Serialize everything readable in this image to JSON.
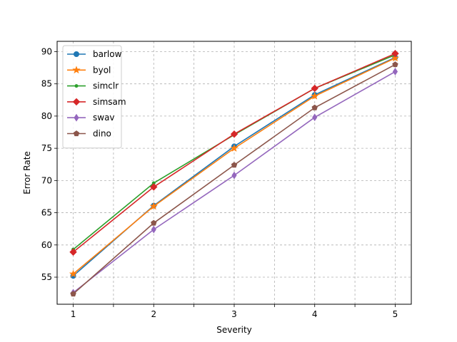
{
  "chart_data": {
    "type": "line",
    "xlabel": "Severity",
    "ylabel": "Error Rate",
    "x": [
      1,
      2,
      3,
      4,
      5
    ],
    "x_ticks": [
      1,
      2,
      3,
      4,
      5
    ],
    "x_minor_ticks": [
      1.5,
      2.5,
      3.5,
      4.5
    ],
    "xlim": [
      0.8,
      5.2
    ],
    "y_ticks": [
      55,
      60,
      65,
      70,
      75,
      80,
      85,
      90
    ],
    "ylim": [
      50.8,
      91.6
    ],
    "grid": true,
    "legend_position": "upper-left",
    "series": [
      {
        "name": "barlow",
        "color": "#1f77b4",
        "marker": "circle",
        "values": [
          55.2,
          66.1,
          75.3,
          83.3,
          89.1
        ]
      },
      {
        "name": "byol",
        "color": "#ff7f0e",
        "marker": "star",
        "values": [
          55.5,
          66.0,
          75.0,
          83.1,
          89.0
        ]
      },
      {
        "name": "simclr",
        "color": "#2ca02c",
        "marker": "point",
        "values": [
          59.3,
          69.6,
          77.1,
          84.3,
          89.5
        ]
      },
      {
        "name": "simsam",
        "color": "#d62728",
        "marker": "diamond",
        "values": [
          58.9,
          69.0,
          77.2,
          84.3,
          89.7
        ]
      },
      {
        "name": "swav",
        "color": "#9467bd",
        "marker": "thin-diamond",
        "values": [
          52.6,
          62.4,
          70.8,
          79.8,
          86.9
        ]
      },
      {
        "name": "dino",
        "color": "#8c564b",
        "marker": "pentagon",
        "values": [
          52.4,
          63.4,
          72.4,
          81.3,
          88.0
        ]
      }
    ]
  }
}
